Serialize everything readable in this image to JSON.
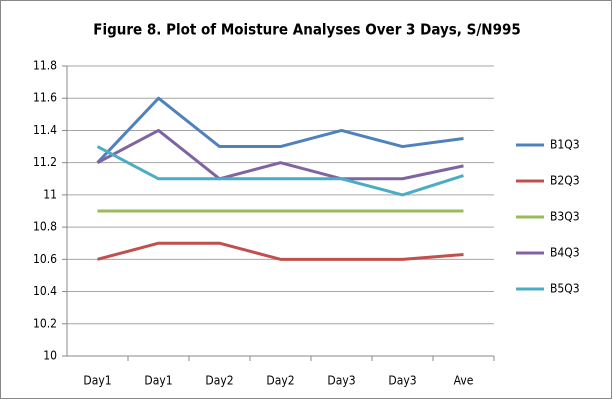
{
  "chart_data": {
    "type": "line",
    "title": "Figure 8. Plot of Moisture Analyses Over 3 Days, S/N995",
    "categories": [
      "Day1",
      "Day1",
      "Day2",
      "Day2",
      "Day3",
      "Day3",
      "Ave"
    ],
    "series": [
      {
        "name": "B1Q3",
        "color": "#4f81bd",
        "values": [
          11.2,
          11.6,
          11.3,
          11.3,
          11.4,
          11.3,
          11.35
        ]
      },
      {
        "name": "B2Q3",
        "color": "#c0504d",
        "values": [
          10.6,
          10.7,
          10.7,
          10.6,
          10.6,
          10.6,
          10.63
        ]
      },
      {
        "name": "B3Q3",
        "color": "#9bbb59",
        "values": [
          10.9,
          10.9,
          10.9,
          10.9,
          10.9,
          10.9,
          10.9
        ]
      },
      {
        "name": "B4Q3",
        "color": "#8064a2",
        "values": [
          11.2,
          11.4,
          11.1,
          11.2,
          11.1,
          11.1,
          11.18
        ]
      },
      {
        "name": "B5Q3",
        "color": "#4bacc6",
        "values": [
          11.3,
          11.1,
          11.1,
          11.1,
          11.1,
          11.0,
          11.12
        ]
      }
    ],
    "ylim": [
      10,
      11.8
    ],
    "yticks": [
      10,
      10.2,
      10.4,
      10.6,
      10.8,
      11,
      11.2,
      11.4,
      11.6,
      11.8
    ],
    "grid": true,
    "legend": "right"
  }
}
